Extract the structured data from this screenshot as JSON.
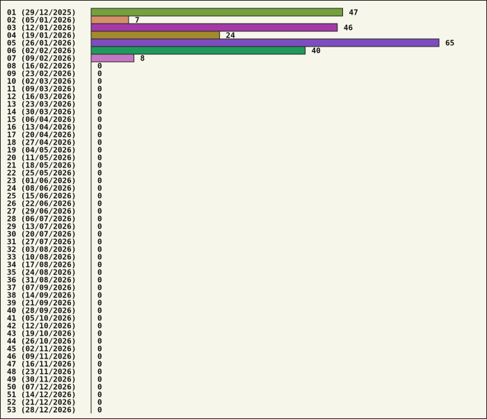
{
  "chart_data": {
    "type": "bar",
    "orientation": "horizontal",
    "title": "",
    "xlabel": "",
    "ylabel": "",
    "grid": false,
    "legend": "none",
    "categories": [
      "01 (29/12/2025)",
      "02 (05/01/2026)",
      "03 (12/01/2026)",
      "04 (19/01/2026)",
      "05 (26/01/2026)",
      "06 (02/02/2026)",
      "07 (09/02/2026)",
      "08 (16/02/2026)",
      "09 (23/02/2026)",
      "10 (02/03/2026)",
      "11 (09/03/2026)",
      "12 (16/03/2026)",
      "13 (23/03/2026)",
      "14 (30/03/2026)",
      "15 (06/04/2026)",
      "16 (13/04/2026)",
      "17 (20/04/2026)",
      "18 (27/04/2026)",
      "19 (04/05/2026)",
      "20 (11/05/2026)",
      "21 (18/05/2026)",
      "22 (25/05/2026)",
      "23 (01/06/2026)",
      "24 (08/06/2026)",
      "25 (15/06/2026)",
      "26 (22/06/2026)",
      "27 (29/06/2026)",
      "28 (06/07/2026)",
      "29 (13/07/2026)",
      "30 (20/07/2026)",
      "31 (27/07/2026)",
      "32 (03/08/2026)",
      "33 (10/08/2026)",
      "34 (17/08/2026)",
      "35 (24/08/2026)",
      "36 (31/08/2026)",
      "37 (07/09/2026)",
      "38 (14/09/2026)",
      "39 (21/09/2026)",
      "40 (28/09/2026)",
      "41 (05/10/2026)",
      "42 (12/10/2026)",
      "43 (19/10/2026)",
      "44 (26/10/2026)",
      "45 (02/11/2026)",
      "46 (09/11/2026)",
      "47 (16/11/2026)",
      "48 (23/11/2026)",
      "49 (30/11/2026)",
      "50 (07/12/2026)",
      "51 (14/12/2026)",
      "52 (21/12/2026)",
      "53 (28/12/2026)"
    ],
    "values": [
      47,
      7,
      46,
      24,
      65,
      40,
      8,
      0,
      0,
      0,
      0,
      0,
      0,
      0,
      0,
      0,
      0,
      0,
      0,
      0,
      0,
      0,
      0,
      0,
      0,
      0,
      0,
      0,
      0,
      0,
      0,
      0,
      0,
      0,
      0,
      0,
      0,
      0,
      0,
      0,
      0,
      0,
      0,
      0,
      0,
      0,
      0,
      0,
      0,
      0,
      0,
      0,
      0
    ],
    "colors": [
      "#75a03e",
      "#d4906a",
      "#a43aa8",
      "#a48a2a",
      "#7d4dbe",
      "#1f9a5a",
      "#c577c4"
    ],
    "xlim": [
      0,
      65
    ]
  }
}
